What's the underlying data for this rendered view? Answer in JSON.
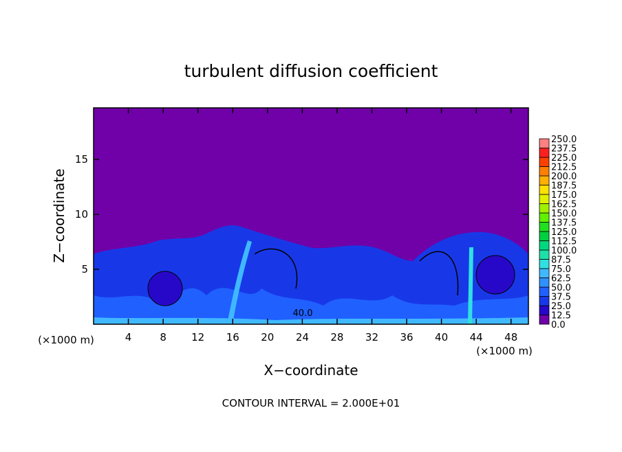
{
  "chart_data": {
    "type": "contour",
    "title": "turbulent diffusion coefficient",
    "x_label": "X−coordinate",
    "y_label": "Z−coordinate",
    "x_unit": "(×1000 m)",
    "footer": "CONTOUR INTERVAL = 2.000E+01",
    "annotations": [
      "40.0"
    ],
    "xlim": [
      0,
      50
    ],
    "ylim": [
      0,
      19.7
    ],
    "xticks": [
      4,
      8,
      12,
      16,
      20,
      24,
      28,
      32,
      36,
      40,
      44,
      48
    ],
    "yticks": [
      5,
      10,
      15
    ],
    "colorbar": {
      "levels": [
        {
          "value": 0,
          "label": "0.0"
        },
        {
          "value": 12.5,
          "label": "12.5"
        },
        {
          "value": 25,
          "label": "25.0"
        },
        {
          "value": 37.5,
          "label": "37.5"
        },
        {
          "value": 50,
          "label": "50.0"
        },
        {
          "value": 62.5,
          "label": "62.5"
        },
        {
          "value": 75,
          "label": "75.0"
        },
        {
          "value": 87.5,
          "label": "87.5"
        },
        {
          "value": 100,
          "label": "100.0"
        },
        {
          "value": 112.5,
          "label": "112.5"
        },
        {
          "value": 125,
          "label": "125.0"
        },
        {
          "value": 137.5,
          "label": "137.5"
        },
        {
          "value": 150,
          "label": "150.0"
        },
        {
          "value": 162.5,
          "label": "162.5"
        },
        {
          "value": 175,
          "label": "175.0"
        },
        {
          "value": 187.5,
          "label": "187.5"
        },
        {
          "value": 200,
          "label": "200.0"
        },
        {
          "value": 212.5,
          "label": "212.5"
        },
        {
          "value": 225,
          "label": "225.0"
        },
        {
          "value": 237.5,
          "label": "237.5"
        },
        {
          "value": 250,
          "label": "250.0"
        }
      ],
      "colors": [
        "#7000a8",
        "#2808c8",
        "#1838e8",
        "#2060ff",
        "#3090ff",
        "#40b8ff",
        "#30e0e0",
        "#20e0a8",
        "#00d880",
        "#00d040",
        "#20e020",
        "#60f000",
        "#a0f000",
        "#e0f000",
        "#ffe000",
        "#ffb000",
        "#ff8000",
        "#ff4000",
        "#ff2020",
        "#ff8080"
      ]
    }
  }
}
